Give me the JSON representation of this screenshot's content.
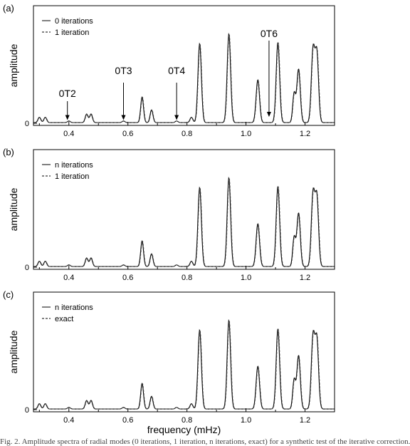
{
  "figure": {
    "xlabel": "frequency (mHz)",
    "ylabel": "amplitude",
    "xticks": [
      "0.4",
      "0.6",
      "0.8",
      "1.0",
      "1.2"
    ],
    "ytick": "0"
  },
  "chart_data": [
    {
      "type": "line",
      "panel_label": "(a)",
      "xlim": [
        0.28,
        1.3
      ],
      "ylim": [
        -0.02,
        1.1
      ],
      "xlabel": "",
      "ylabel": "amplitude",
      "legend_position": "top-left",
      "series": [
        {
          "name": "0 iterations",
          "style": "solid"
        },
        {
          "name": "1 iteration",
          "style": "dashed"
        }
      ],
      "peaks": [
        {
          "x": 0.3,
          "y": 0.05
        },
        {
          "x": 0.32,
          "y": 0.05
        },
        {
          "x": 0.4,
          "y": 0.015
        },
        {
          "x": 0.46,
          "y": 0.08
        },
        {
          "x": 0.475,
          "y": 0.08
        },
        {
          "x": 0.585,
          "y": 0.015
        },
        {
          "x": 0.648,
          "y": 0.24
        },
        {
          "x": 0.68,
          "y": 0.12
        },
        {
          "x": 0.765,
          "y": 0.015
        },
        {
          "x": 0.815,
          "y": 0.05
        },
        {
          "x": 0.843,
          "y": 0.74
        },
        {
          "x": 0.942,
          "y": 0.83
        },
        {
          "x": 1.04,
          "y": 0.4
        },
        {
          "x": 1.108,
          "y": 0.75
        },
        {
          "x": 1.163,
          "y": 0.27
        },
        {
          "x": 1.178,
          "y": 0.5
        },
        {
          "x": 1.227,
          "y": 0.67
        },
        {
          "x": 1.24,
          "y": 0.64
        }
      ],
      "annotations": [
        {
          "text": "0T2",
          "x": 0.395
        },
        {
          "text": "0T3",
          "x": 0.585
        },
        {
          "text": "0T4",
          "x": 0.765
        },
        {
          "text": "0T6",
          "x": 1.078
        }
      ]
    },
    {
      "type": "line",
      "panel_label": "(b)",
      "xlim": [
        0.28,
        1.3
      ],
      "ylim": [
        -0.02,
        1.1
      ],
      "xlabel": "",
      "ylabel": "amplitude",
      "legend_position": "top-left",
      "series": [
        {
          "name": "n iterations",
          "style": "solid"
        },
        {
          "name": "1 iteration",
          "style": "dashed"
        }
      ],
      "peaks": [
        {
          "x": 0.3,
          "y": 0.05
        },
        {
          "x": 0.32,
          "y": 0.05
        },
        {
          "x": 0.4,
          "y": 0.015
        },
        {
          "x": 0.46,
          "y": 0.08
        },
        {
          "x": 0.475,
          "y": 0.08
        },
        {
          "x": 0.585,
          "y": 0.015
        },
        {
          "x": 0.648,
          "y": 0.24
        },
        {
          "x": 0.68,
          "y": 0.12
        },
        {
          "x": 0.765,
          "y": 0.015
        },
        {
          "x": 0.815,
          "y": 0.05
        },
        {
          "x": 0.843,
          "y": 0.74
        },
        {
          "x": 0.942,
          "y": 0.83
        },
        {
          "x": 1.04,
          "y": 0.4
        },
        {
          "x": 1.108,
          "y": 0.75
        },
        {
          "x": 1.163,
          "y": 0.27
        },
        {
          "x": 1.178,
          "y": 0.5
        },
        {
          "x": 1.227,
          "y": 0.67
        },
        {
          "x": 1.24,
          "y": 0.64
        }
      ],
      "annotations": []
    },
    {
      "type": "line",
      "panel_label": "(c)",
      "xlim": [
        0.28,
        1.3
      ],
      "ylim": [
        -0.02,
        1.1
      ],
      "xlabel": "frequency (mHz)",
      "ylabel": "amplitude",
      "legend_position": "top-left",
      "series": [
        {
          "name": "n iterations",
          "style": "solid"
        },
        {
          "name": "exact",
          "style": "dashed"
        }
      ],
      "peaks": [
        {
          "x": 0.3,
          "y": 0.05
        },
        {
          "x": 0.32,
          "y": 0.05
        },
        {
          "x": 0.4,
          "y": 0.015
        },
        {
          "x": 0.46,
          "y": 0.08
        },
        {
          "x": 0.475,
          "y": 0.08
        },
        {
          "x": 0.585,
          "y": 0.015
        },
        {
          "x": 0.648,
          "y": 0.24
        },
        {
          "x": 0.68,
          "y": 0.12
        },
        {
          "x": 0.765,
          "y": 0.015
        },
        {
          "x": 0.815,
          "y": 0.05
        },
        {
          "x": 0.843,
          "y": 0.74
        },
        {
          "x": 0.942,
          "y": 0.83
        },
        {
          "x": 1.04,
          "y": 0.4
        },
        {
          "x": 1.108,
          "y": 0.75
        },
        {
          "x": 1.163,
          "y": 0.27
        },
        {
          "x": 1.178,
          "y": 0.5
        },
        {
          "x": 1.227,
          "y": 0.67
        },
        {
          "x": 1.24,
          "y": 0.64
        }
      ],
      "annotations": []
    }
  ],
  "caption_fragment": "Fig. 2. Amplitude spectra of radial modes (0 iterations, 1 iteration, n iterations, exact) for a synthetic test of the iterative correction."
}
